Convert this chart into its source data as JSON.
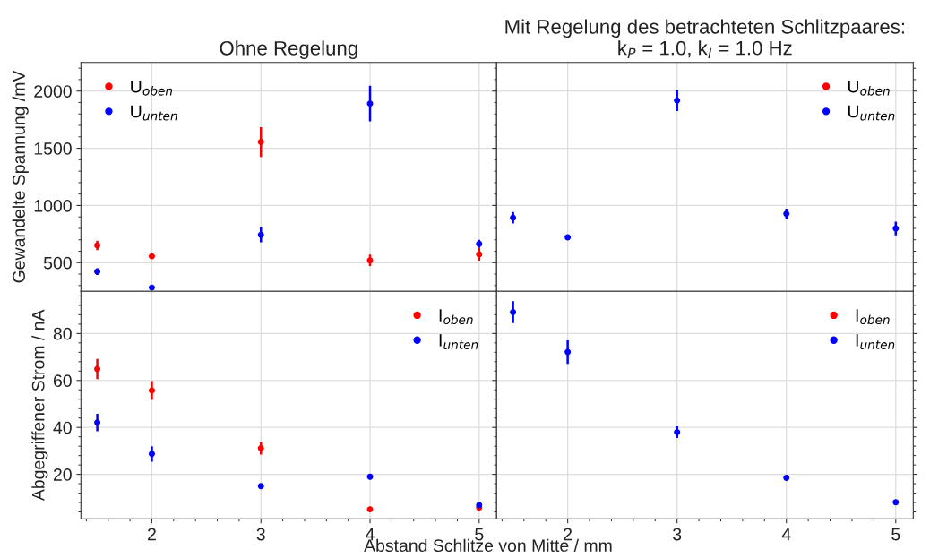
{
  "chart_data": [
    {
      "type": "scatter",
      "title": "Ohne Regelung",
      "ylabel": "Gewandelte Spannung /mV",
      "x": [
        1.5,
        2,
        3,
        4,
        5
      ],
      "xlim": [
        1.35,
        5.16
      ],
      "xticks": [
        2,
        3,
        4,
        5
      ],
      "ylim": [
        250,
        2250
      ],
      "yticks": [
        500,
        1000,
        1500,
        2000
      ],
      "tick_labels": "y",
      "grid": true,
      "legend": "top left",
      "marker": "circle",
      "series": [
        {
          "name": "U$_{oben}$",
          "color": "#ff0000",
          "values": [
            651,
            556,
            1555,
            520,
            573
          ],
          "errors": [
            42,
            20,
            130,
            50,
            55
          ]
        },
        {
          "name": "U$_{unten}$",
          "color": "#0000ff",
          "values": [
            422,
            282,
            743,
            1891,
            665
          ],
          "errors": [
            30,
            20,
            65,
            155,
            35
          ]
        }
      ]
    },
    {
      "type": "scatter",
      "title": "Mit Regelung des betrachteten Schlitzpaares:\nk$_{P}$ = 1.0, k$_{I}$ = 1.0 Hz",
      "x": [
        1.5,
        2,
        3,
        4,
        5
      ],
      "xlim": [
        1.35,
        5.16
      ],
      "xticks": [
        2,
        3,
        4,
        5
      ],
      "ylim": [
        250,
        2250
      ],
      "yticks": [
        500,
        1000,
        1500,
        2000
      ],
      "tick_labels": false,
      "grid": true,
      "legend": "top right",
      "marker": "circle",
      "series": [
        {
          "name": "U$_{oben}$",
          "color": "#ff0000",
          "values": [
            null,
            null,
            null,
            null,
            null
          ],
          "errors": [
            null,
            null,
            null,
            null,
            null
          ]
        },
        {
          "name": "U$_{unten}$",
          "color": "#0000ff",
          "values": [
            893,
            722,
            1917,
            927,
            799
          ],
          "errors": [
            50,
            15,
            92,
            45,
            60
          ]
        }
      ]
    },
    {
      "type": "scatter",
      "ylabel": "Abgegriffener Strom / nA",
      "xlabel": "Abstand Schlitze von Mitte / mm",
      "x": [
        1.5,
        2,
        3,
        4,
        5
      ],
      "xlim": [
        1.35,
        5.16
      ],
      "xticks": [
        2,
        3,
        4,
        5
      ],
      "ylim": [
        1,
        98
      ],
      "yticks": [
        20,
        40,
        60,
        80
      ],
      "grid": true,
      "legend": "top right",
      "marker": "circle",
      "series": [
        {
          "name": "I$_{oben}$",
          "color": "#ff0000",
          "values": [
            64.9,
            55.7,
            31.1,
            5.1,
            5.8
          ],
          "errors": [
            4.3,
            4,
            2.7,
            0.5,
            0.5
          ]
        },
        {
          "name": "I$_{unten}$",
          "color": "#0000ff",
          "values": [
            42.1,
            28.7,
            15,
            19,
            6.9
          ],
          "errors": [
            3.7,
            3.3,
            1,
            1.2,
            1
          ]
        }
      ]
    },
    {
      "type": "scatter",
      "x": [
        1.5,
        2,
        3,
        4,
        5
      ],
      "xlim": [
        1.35,
        5.16
      ],
      "xticks": [
        2,
        3,
        4,
        5
      ],
      "ylim": [
        1,
        98
      ],
      "yticks": [
        20,
        40,
        60,
        80
      ],
      "tick_labels": "x",
      "grid": true,
      "legend": "top right",
      "marker": "circle",
      "series": [
        {
          "name": "I$_{oben}$",
          "color": "#ff0000",
          "values": [
            null,
            null,
            null,
            null,
            null
          ],
          "errors": [
            null,
            null,
            null,
            null,
            null
          ]
        },
        {
          "name": "I$_{unten}$",
          "color": "#0000ff",
          "values": [
            89.1,
            72.1,
            38.0,
            18.5,
            8.1
          ],
          "errors": [
            4.7,
            5,
            2.5,
            0.5,
            0.5
          ]
        }
      ]
    }
  ]
}
